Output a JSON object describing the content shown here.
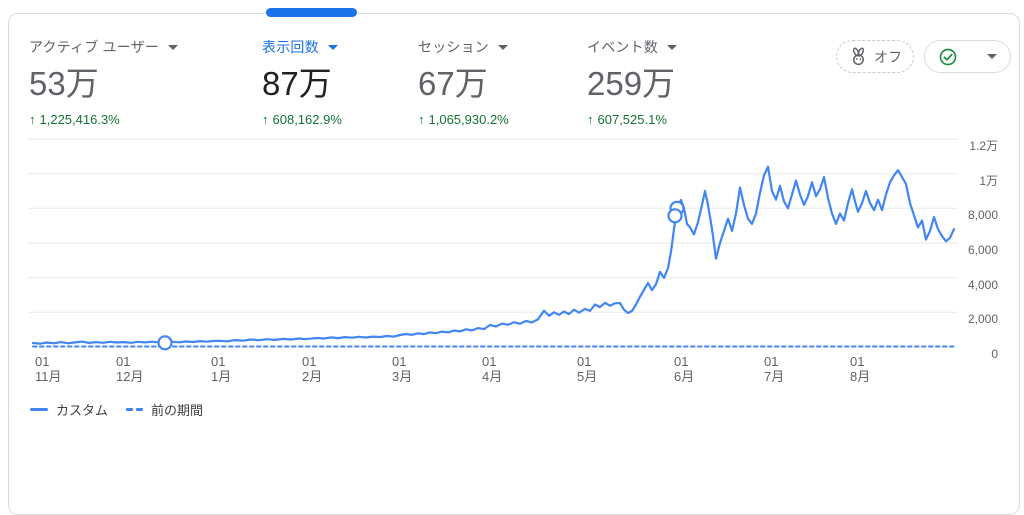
{
  "metrics": [
    {
      "label": "アクティブ ユーザー",
      "value": "53万",
      "arrow": "↑",
      "delta": "1,225,416.3%",
      "selected": false
    },
    {
      "label": "表示回数",
      "value": "87万",
      "arrow": "↑",
      "delta": "608,162.9%",
      "selected": true
    },
    {
      "label": "セッション",
      "value": "67万",
      "arrow": "↑",
      "delta": "1,065,930.2%",
      "selected": false
    },
    {
      "label": "イベント数",
      "value": "259万",
      "arrow": "↑",
      "delta": "607,525.1%",
      "selected": false
    }
  ],
  "controls": {
    "sampling_state": "オフ",
    "sampling_icon": "rabbit-speed-icon",
    "quality_icon": "check-circle-icon"
  },
  "legend": [
    {
      "label": "カスタム",
      "style": "solid"
    },
    {
      "label": "前の期間",
      "style": "dashed"
    }
  ],
  "colors": {
    "accent": "#1a73e8",
    "line": "#4285f4",
    "positive_green": "#137333",
    "check_green": "#1e8e3e",
    "grid": "#e8eaed",
    "text_secondary": "#5f6368",
    "text_primary": "#202124",
    "border": "#dadce0"
  },
  "chart_data": {
    "type": "line",
    "title": "",
    "xlabel": "",
    "ylabel": "",
    "ylim": [
      0,
      12400
    ],
    "grid": true,
    "legend_position": "bottom-left",
    "y_axis": {
      "ticks": [
        {
          "value": 12000,
          "label": "1.2万"
        },
        {
          "value": 10000,
          "label": "1万"
        },
        {
          "value": 8000,
          "label": "8,000"
        },
        {
          "value": 6000,
          "label": "6,000"
        },
        {
          "value": 4000,
          "label": "4,000"
        },
        {
          "value": 2000,
          "label": "2,000"
        },
        {
          "value": 0,
          "label": "0"
        }
      ]
    },
    "x_axis": {
      "ticks": [
        {
          "x": 43,
          "day": "01",
          "month": "11月"
        },
        {
          "x": 124,
          "day": "01",
          "month": "12月"
        },
        {
          "x": 219,
          "day": "01",
          "month": "1月"
        },
        {
          "x": 310,
          "day": "01",
          "month": "2月"
        },
        {
          "x": 400,
          "day": "01",
          "month": "3月"
        },
        {
          "x": 490,
          "day": "01",
          "month": "4月"
        },
        {
          "x": 585,
          "day": "01",
          "month": "5月"
        },
        {
          "x": 682,
          "day": "01",
          "month": "6月"
        },
        {
          "x": 772,
          "day": "01",
          "month": "7月"
        },
        {
          "x": 858,
          "day": "01",
          "month": "8月"
        }
      ]
    },
    "series": [
      {
        "name": "カスタム",
        "style": "solid",
        "points": [
          [
            33,
            230
          ],
          [
            40,
            190
          ],
          [
            47,
            260
          ],
          [
            54,
            215
          ],
          [
            61,
            285
          ],
          [
            68,
            215
          ],
          [
            75,
            265
          ],
          [
            82,
            310
          ],
          [
            89,
            235
          ],
          [
            96,
            280
          ],
          [
            103,
            245
          ],
          [
            110,
            300
          ],
          [
            117,
            260
          ],
          [
            124,
            285
          ],
          [
            131,
            245
          ],
          [
            138,
            300
          ],
          [
            145,
            265
          ],
          [
            152,
            305
          ],
          [
            158,
            270
          ],
          [
            165,
            240
          ],
          [
            172,
            300
          ],
          [
            179,
            270
          ],
          [
            186,
            320
          ],
          [
            193,
            290
          ],
          [
            200,
            340
          ],
          [
            207,
            305
          ],
          [
            213,
            345
          ],
          [
            219,
            360
          ],
          [
            227,
            330
          ],
          [
            235,
            400
          ],
          [
            243,
            365
          ],
          [
            251,
            430
          ],
          [
            259,
            390
          ],
          [
            267,
            450
          ],
          [
            275,
            410
          ],
          [
            283,
            470
          ],
          [
            291,
            430
          ],
          [
            299,
            490
          ],
          [
            305,
            455
          ],
          [
            310,
            480
          ],
          [
            317,
            520
          ],
          [
            324,
            490
          ],
          [
            331,
            555
          ],
          [
            338,
            515
          ],
          [
            345,
            570
          ],
          [
            352,
            535
          ],
          [
            359,
            590
          ],
          [
            366,
            550
          ],
          [
            373,
            600
          ],
          [
            380,
            575
          ],
          [
            387,
            635
          ],
          [
            394,
            600
          ],
          [
            400,
            690
          ],
          [
            406,
            750
          ],
          [
            412,
            705
          ],
          [
            418,
            790
          ],
          [
            424,
            745
          ],
          [
            430,
            840
          ],
          [
            436,
            795
          ],
          [
            442,
            890
          ],
          [
            448,
            845
          ],
          [
            454,
            950
          ],
          [
            460,
            900
          ],
          [
            466,
            1020
          ],
          [
            472,
            960
          ],
          [
            478,
            1090
          ],
          [
            484,
            1030
          ],
          [
            490,
            1270
          ],
          [
            496,
            1180
          ],
          [
            502,
            1350
          ],
          [
            508,
            1280
          ],
          [
            514,
            1430
          ],
          [
            520,
            1340
          ],
          [
            526,
            1500
          ],
          [
            532,
            1420
          ],
          [
            538,
            1600
          ],
          [
            544,
            2100
          ],
          [
            549,
            1800
          ],
          [
            554,
            2000
          ],
          [
            559,
            1850
          ],
          [
            564,
            2050
          ],
          [
            569,
            1900
          ],
          [
            574,
            2150
          ],
          [
            579,
            1980
          ],
          [
            585,
            2200
          ],
          [
            590,
            2080
          ],
          [
            595,
            2450
          ],
          [
            600,
            2300
          ],
          [
            605,
            2550
          ],
          [
            610,
            2380
          ],
          [
            615,
            2520
          ],
          [
            620,
            2540
          ],
          [
            624,
            2150
          ],
          [
            628,
            1960
          ],
          [
            632,
            2080
          ],
          [
            636,
            2450
          ],
          [
            640,
            2900
          ],
          [
            644,
            3300
          ],
          [
            648,
            3690
          ],
          [
            652,
            3280
          ],
          [
            656,
            3620
          ],
          [
            660,
            4330
          ],
          [
            664,
            3980
          ],
          [
            668,
            4560
          ],
          [
            671,
            5500
          ],
          [
            674,
            6800
          ],
          [
            677,
            8000
          ],
          [
            681,
            8480
          ],
          [
            684,
            8000
          ],
          [
            687,
            7100
          ],
          [
            690,
            6900
          ],
          [
            694,
            6500
          ],
          [
            698,
            7200
          ],
          [
            702,
            8200
          ],
          [
            705,
            9000
          ],
          [
            708,
            8200
          ],
          [
            712,
            6800
          ],
          [
            716,
            5100
          ],
          [
            720,
            6000
          ],
          [
            724,
            6700
          ],
          [
            728,
            7400
          ],
          [
            732,
            6700
          ],
          [
            736,
            7700
          ],
          [
            740,
            9200
          ],
          [
            744,
            8200
          ],
          [
            748,
            7400
          ],
          [
            752,
            7100
          ],
          [
            756,
            7700
          ],
          [
            760,
            8900
          ],
          [
            764,
            9900
          ],
          [
            768,
            10400
          ],
          [
            772,
            9000
          ],
          [
            776,
            8500
          ],
          [
            780,
            9300
          ],
          [
            784,
            8400
          ],
          [
            788,
            8000
          ],
          [
            792,
            8800
          ],
          [
            796,
            9600
          ],
          [
            800,
            8800
          ],
          [
            804,
            8200
          ],
          [
            808,
            8700
          ],
          [
            812,
            9500
          ],
          [
            816,
            8700
          ],
          [
            820,
            9100
          ],
          [
            824,
            9800
          ],
          [
            828,
            8600
          ],
          [
            832,
            7700
          ],
          [
            836,
            7100
          ],
          [
            840,
            7700
          ],
          [
            844,
            7300
          ],
          [
            848,
            8300
          ],
          [
            852,
            9100
          ],
          [
            855,
            8400
          ],
          [
            858,
            7800
          ],
          [
            862,
            8300
          ],
          [
            866,
            9000
          ],
          [
            870,
            8300
          ],
          [
            874,
            7900
          ],
          [
            878,
            8500
          ],
          [
            882,
            7900
          ],
          [
            886,
            8800
          ],
          [
            890,
            9500
          ],
          [
            894,
            9900
          ],
          [
            898,
            10200
          ],
          [
            902,
            9800
          ],
          [
            906,
            9400
          ],
          [
            910,
            8300
          ],
          [
            914,
            7600
          ],
          [
            918,
            6900
          ],
          [
            922,
            7300
          ],
          [
            926,
            6200
          ],
          [
            930,
            6700
          ],
          [
            934,
            7500
          ],
          [
            938,
            6800
          ],
          [
            942,
            6400
          ],
          [
            946,
            6100
          ],
          [
            950,
            6300
          ],
          [
            954,
            6800
          ]
        ]
      },
      {
        "name": "前の期間",
        "style": "dashed",
        "points": [
          [
            33,
            30
          ],
          [
            954,
            30
          ]
        ]
      }
    ],
    "markers": [
      {
        "x": 165,
        "value": 240
      },
      {
        "x": 677,
        "value": 8000
      },
      {
        "x": 675,
        "value": 7570
      }
    ]
  }
}
